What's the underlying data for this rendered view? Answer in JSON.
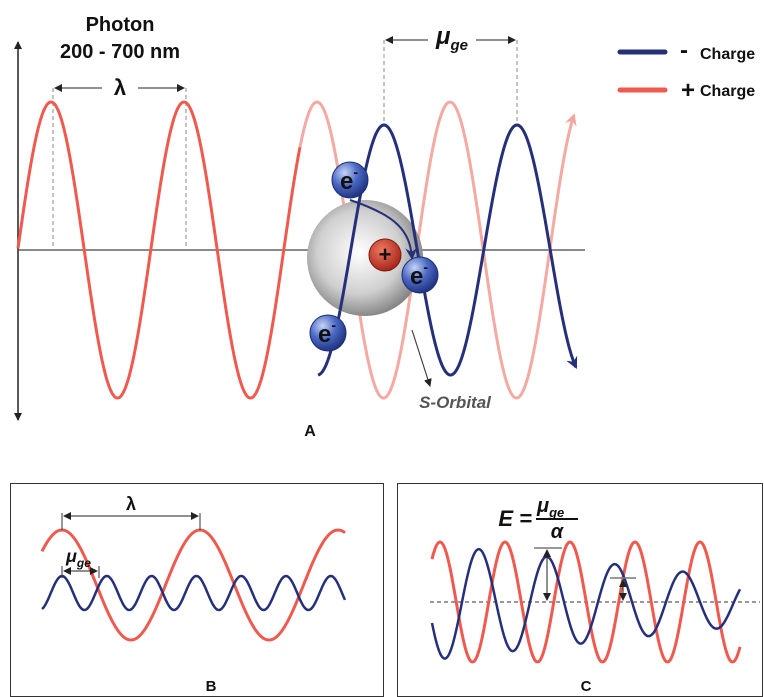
{
  "panel_a": {
    "photon_title": "Photon",
    "wavelength_range": "200 - 700 nm",
    "lambda": "λ",
    "mu": {
      "symbol": "μ",
      "subscript": "ge"
    },
    "legend": [
      {
        "sign": "-",
        "label": "Charge"
      },
      {
        "sign": "+",
        "label": "Charge"
      }
    ],
    "electrons": [
      {
        "symbol": "e",
        "charge": "-"
      },
      {
        "symbol": "e",
        "charge": "-"
      },
      {
        "symbol": "e",
        "charge": "-"
      }
    ],
    "nucleus": "+",
    "orbital_label": "S-Orbital",
    "panel_label": "A"
  },
  "panel_b": {
    "lambda": "λ",
    "mu": {
      "symbol": "μ",
      "subscript": "ge"
    },
    "panel_label": "B"
  },
  "panel_c": {
    "equation": {
      "lhs": "E =",
      "numerator": {
        "symbol": "μ",
        "subscript": "ge"
      },
      "denominator": "α"
    },
    "panel_label": "C"
  }
}
